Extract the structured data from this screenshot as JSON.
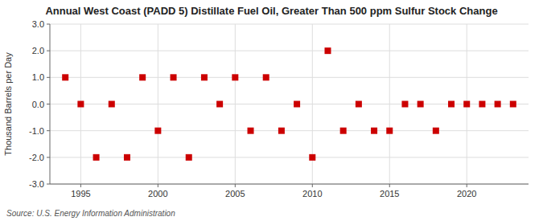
{
  "chart_data": {
    "type": "scatter",
    "title": "Annual West Coast (PADD 5) Distillate Fuel Oil, Greater Than 500 ppm Sulfur Stock Change",
    "y_label": "Thousand Barrels per Day",
    "annotations": [
      "Source: U.S. Energy Information Administration"
    ],
    "x": [
      1994,
      1995,
      1996,
      1997,
      1998,
      1999,
      2000,
      2001,
      2002,
      2003,
      2004,
      2005,
      2006,
      2007,
      2008,
      2009,
      2010,
      2011,
      2012,
      2013,
      2014,
      2015,
      2016,
      2017,
      2018,
      2019,
      2020,
      2021,
      2022,
      2023
    ],
    "values": [
      1.0,
      0.0,
      -2.0,
      0.0,
      -2.0,
      1.0,
      -1.0,
      1.0,
      -2.0,
      1.0,
      0.0,
      1.0,
      -1.0,
      1.0,
      -1.0,
      0.0,
      -2.0,
      2.0,
      -1.0,
      0.0,
      -1.0,
      -1.0,
      0.0,
      0.0,
      -1.0,
      0.0,
      0.0,
      0.0,
      0.0,
      0.0
    ],
    "color": "#cc0000",
    "marker": "square",
    "xlim": [
      1993.0,
      2024.0
    ],
    "ylim": [
      -3.0,
      3.0
    ],
    "xticks": [
      1995,
      2000,
      2005,
      2010,
      2015,
      2020
    ],
    "yticks": [
      {
        "value": -3.0,
        "label": "-3.0"
      },
      {
        "value": -2.0,
        "label": "-2.0"
      },
      {
        "value": -1.0,
        "label": "-1.0"
      },
      {
        "value": 0.0,
        "label": "0.0"
      },
      {
        "value": 1.0,
        "label": "1.0"
      },
      {
        "value": 2.0,
        "label": "2.0"
      },
      {
        "value": 3.0,
        "label": "3.0"
      }
    ],
    "grid": true
  }
}
